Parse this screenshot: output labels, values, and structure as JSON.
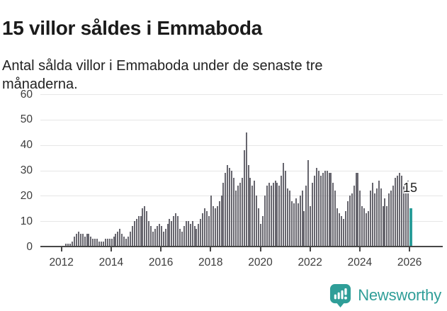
{
  "header": {
    "title": "15 villor såldes i Emmaboda",
    "subtitle": "Antal sålda villor i Emmaboda under de senaste tre månaderna."
  },
  "chart_data": {
    "type": "bar",
    "title": "15 villor såldes i Emmaboda",
    "subtitle": "Antal sålda villor i Emmaboda under de senaste tre månaderna.",
    "ylabel": "",
    "xlabel": "",
    "ylim": [
      0,
      60
    ],
    "y_tick_labels": [
      "0",
      "10",
      "20",
      "30",
      "40",
      "50",
      "60"
    ],
    "x_tick_labels": [
      "2012",
      "2014",
      "2016",
      "2018",
      "2020",
      "2022",
      "2024",
      "2026"
    ],
    "grid": "horizontal",
    "x_start": "2012-01",
    "x_end": "2026-01",
    "frequency": "monthly",
    "bar_color": "#67666e",
    "values": [
      0,
      0,
      1,
      1,
      1,
      2,
      4,
      5,
      6,
      5,
      5,
      4,
      5,
      5,
      4,
      3,
      3,
      3,
      2,
      2,
      2,
      3,
      3,
      3,
      3,
      4,
      5,
      6,
      7,
      5,
      4,
      3,
      4,
      6,
      8,
      10,
      11,
      12,
      12,
      15,
      16,
      14,
      10,
      8,
      6,
      7,
      8,
      9,
      8,
      6,
      7,
      9,
      11,
      10,
      12,
      13,
      12,
      7,
      6,
      8,
      10,
      10,
      9,
      10,
      8,
      7,
      9,
      11,
      13,
      15,
      14,
      12,
      20,
      16,
      15,
      16,
      18,
      20,
      25,
      29,
      32,
      31,
      30,
      27,
      22,
      24,
      25,
      27,
      38,
      45,
      32,
      27,
      24,
      26,
      20,
      15,
      9,
      12,
      20,
      24,
      25,
      24,
      25,
      26,
      25,
      24,
      28,
      33,
      30,
      23,
      22,
      18,
      17,
      19,
      17,
      20,
      22,
      14,
      24,
      34,
      16,
      25,
      28,
      31,
      30,
      28,
      29,
      30,
      30,
      29,
      29,
      25,
      22,
      15,
      13,
      12,
      11,
      14,
      18,
      20,
      21,
      24,
      29,
      29,
      22,
      16,
      15,
      13,
      14,
      22,
      25,
      21,
      23,
      26,
      23,
      16,
      19,
      16,
      21,
      22,
      24,
      27,
      28,
      29,
      28,
      24,
      22,
      26,
      15
    ],
    "highlight": {
      "index": 168,
      "value": 15,
      "label": "15",
      "color": "#2a9d99"
    },
    "legend": "none"
  },
  "annotation": {
    "label": "15"
  },
  "footer": {
    "brand": "Newsworthy",
    "brand_color": "#2f9e98",
    "logo_icon": "newsworthy-speech-bubble-bar-chart-icon"
  }
}
